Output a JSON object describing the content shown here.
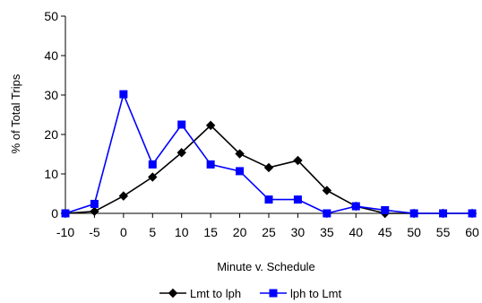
{
  "chart_data": {
    "type": "line",
    "title": "",
    "xlabel": "Minute v. Schedule",
    "ylabel": "% of Total Trips",
    "x": [
      -10,
      -5,
      0,
      5,
      10,
      15,
      20,
      25,
      30,
      35,
      40,
      45,
      50,
      55,
      60
    ],
    "xlim": [
      -10,
      60
    ],
    "ylim": [
      0,
      50
    ],
    "x_ticks": [
      -10,
      -5,
      0,
      5,
      10,
      15,
      20,
      25,
      30,
      35,
      40,
      45,
      50,
      55,
      60
    ],
    "y_ticks": [
      0,
      10,
      20,
      30,
      40,
      50
    ],
    "grid": false,
    "legend_position": "bottom",
    "series": [
      {
        "name": "Lmt to lph",
        "color": "#000000",
        "marker": "diamond",
        "values": [
          0,
          0.5,
          4.4,
          9.2,
          15.4,
          22.3,
          15.1,
          11.6,
          13.4,
          5.8,
          1.8,
          0,
          0,
          0,
          0
        ]
      },
      {
        "name": "lph to Lmt",
        "color": "#0000ff",
        "marker": "square",
        "values": [
          0,
          2.4,
          30.2,
          12.4,
          22.5,
          12.4,
          10.7,
          3.5,
          3.5,
          0,
          1.8,
          0.8,
          0,
          0,
          0
        ]
      }
    ]
  }
}
